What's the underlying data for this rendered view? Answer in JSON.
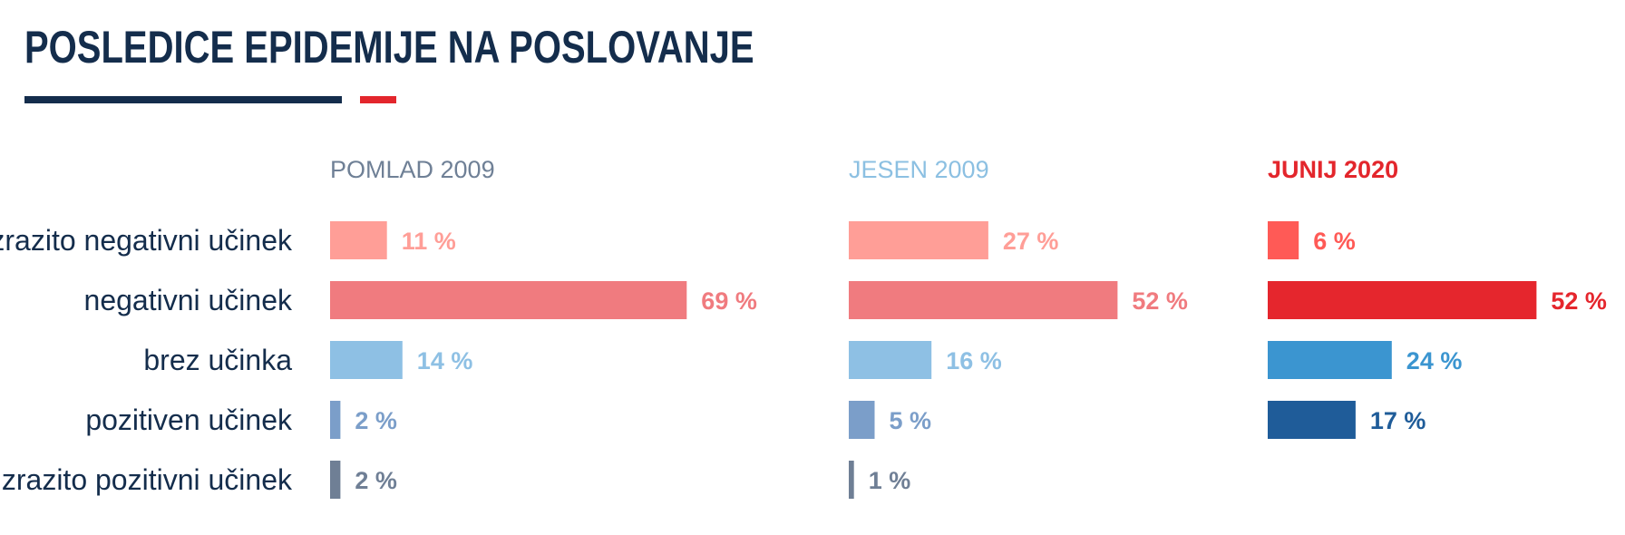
{
  "header": {
    "title": "POSLEDICE EPIDEMIJE NA POSLOVANJE",
    "rule_colors": {
      "dark": "#142d4c",
      "red": "#e3262c"
    }
  },
  "chart_data": {
    "type": "bar",
    "orientation": "horizontal",
    "categories": [
      "izrazito negativni učinek",
      "negativni učinek",
      "brez učinka",
      "pozitiven učinek",
      "izrazito pozitivni učinek"
    ],
    "value_suffix": " %",
    "category_color": "#142d4c",
    "series": [
      {
        "name": "POMLAD 2009",
        "name_color": "#6f8096",
        "values": [
          11,
          69,
          14,
          2,
          2
        ],
        "labels": [
          "11 %",
          "69 %",
          "14 %",
          "2 %",
          "2 %"
        ],
        "colors": [
          "#ff9e97",
          "#f07b7f",
          "#8ec0e4",
          "#7b9ec9",
          "#6f7f95"
        ]
      },
      {
        "name": "JESEN 2009",
        "name_color": "#8cc0e2",
        "values": [
          27,
          52,
          16,
          5,
          1
        ],
        "labels": [
          "27 %",
          "52 %",
          "16 %",
          "5 %",
          "1 %"
        ],
        "colors": [
          "#ff9e97",
          "#f07b7f",
          "#8ec0e4",
          "#7b9ec9",
          "#6f7f95"
        ]
      },
      {
        "name": "JUNIJ 2020",
        "name_color": "#e3262c",
        "values": [
          6,
          52,
          24,
          17,
          null
        ],
        "labels": [
          "6 %",
          "52 %",
          "24 %",
          "17 %",
          null
        ],
        "colors": [
          "#ff5a56",
          "#e5262d",
          "#3b95d0",
          "#1f5c99",
          null
        ]
      }
    ]
  }
}
